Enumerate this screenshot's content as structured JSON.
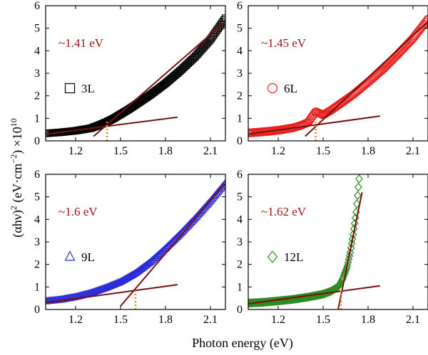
{
  "figure": {
    "ylabel_parts": [
      "(αhν)",
      "2",
      " (eV·cm",
      "−2",
      ")",
      " ×10",
      "10"
    ],
    "xlabel": "Photon energy (eV)"
  },
  "chart_data": [
    {
      "type": "scatter",
      "panel": "3L",
      "legend": "3L",
      "marker": "square",
      "color": "#000000",
      "annotation": "~1.41 eV",
      "bandgap_ev": 1.41,
      "xlim": [
        1.0,
        2.2
      ],
      "ylim": [
        0,
        6
      ],
      "xticks": [
        "1.2",
        "1.5",
        "1.8",
        "2.1"
      ],
      "yticks": [
        "0",
        "1",
        "2",
        "3",
        "4",
        "5",
        "6"
      ],
      "points": [
        [
          1.0,
          0.33
        ],
        [
          1.1,
          0.38
        ],
        [
          1.2,
          0.45
        ],
        [
          1.3,
          0.56
        ],
        [
          1.35,
          0.68
        ],
        [
          1.4,
          0.82
        ],
        [
          1.45,
          0.98
        ],
        [
          1.5,
          1.18
        ],
        [
          1.55,
          1.38
        ],
        [
          1.6,
          1.6
        ],
        [
          1.7,
          2.05
        ],
        [
          1.8,
          2.55
        ],
        [
          1.9,
          3.12
        ],
        [
          2.0,
          3.75
        ],
        [
          2.1,
          4.5
        ],
        [
          2.2,
          5.45
        ]
      ],
      "fit_line": {
        "x": [
          1.32,
          2.2
        ],
        "y": [
          0.2,
          5.3
        ]
      },
      "baseline_fit": {
        "x": [
          1.0,
          1.88
        ],
        "y": [
          0.3,
          1.05
        ]
      }
    },
    {
      "type": "scatter",
      "panel": "6L",
      "legend": "6L",
      "marker": "circle",
      "color": "#e8201c",
      "annotation": "~1.45 eV",
      "bandgap_ev": 1.45,
      "xlim": [
        1.0,
        2.2
      ],
      "ylim": [
        0,
        6
      ],
      "xticks": [
        "1.2",
        "1.5",
        "1.8",
        "2.1"
      ],
      "yticks": [
        "0",
        "1",
        "2",
        "3",
        "4",
        "5",
        "6"
      ],
      "points": [
        [
          1.0,
          0.35
        ],
        [
          1.1,
          0.4
        ],
        [
          1.2,
          0.47
        ],
        [
          1.3,
          0.58
        ],
        [
          1.35,
          0.68
        ],
        [
          1.4,
          0.82
        ],
        [
          1.45,
          1.3
        ],
        [
          1.5,
          1.15
        ],
        [
          1.55,
          1.35
        ],
        [
          1.6,
          1.58
        ],
        [
          1.7,
          2.05
        ],
        [
          1.8,
          2.6
        ],
        [
          1.9,
          3.18
        ],
        [
          2.0,
          3.85
        ],
        [
          2.1,
          4.55
        ],
        [
          2.2,
          5.4
        ]
      ],
      "fit_line": {
        "x": [
          1.38,
          2.2
        ],
        "y": [
          0.2,
          5.3
        ]
      },
      "baseline_fit": {
        "x": [
          1.0,
          1.88
        ],
        "y": [
          0.3,
          1.1
        ]
      }
    },
    {
      "type": "scatter",
      "panel": "9L",
      "legend": "9L",
      "marker": "triangle",
      "color": "#2b2bd6",
      "annotation": "~1.6 eV",
      "bandgap_ev": 1.6,
      "xlim": [
        1.0,
        2.2
      ],
      "ylim": [
        0,
        6
      ],
      "xticks": [
        "1.2",
        "1.5",
        "1.8",
        "2.1"
      ],
      "yticks": [
        "0",
        "1",
        "2",
        "3",
        "4",
        "5",
        "6"
      ],
      "points": [
        [
          1.0,
          0.36
        ],
        [
          1.1,
          0.43
        ],
        [
          1.2,
          0.55
        ],
        [
          1.3,
          0.72
        ],
        [
          1.4,
          0.95
        ],
        [
          1.5,
          1.22
        ],
        [
          1.6,
          1.6
        ],
        [
          1.7,
          2.1
        ],
        [
          1.8,
          2.7
        ],
        [
          1.9,
          3.35
        ],
        [
          2.0,
          4.05
        ],
        [
          2.1,
          4.8
        ],
        [
          2.2,
          5.6
        ]
      ],
      "fit_line": {
        "x": [
          1.5,
          2.2
        ],
        "y": [
          0.15,
          5.6
        ]
      },
      "baseline_fit": {
        "x": [
          1.0,
          1.88
        ],
        "y": [
          0.3,
          1.1
        ]
      }
    },
    {
      "type": "scatter",
      "panel": "12L",
      "legend": "12L",
      "marker": "diamond",
      "color": "#2e8b22",
      "annotation": "~1.62 eV",
      "bandgap_ev": 1.62,
      "xlim": [
        1.0,
        2.2
      ],
      "ylim": [
        0,
        6
      ],
      "xticks": [
        "1.2",
        "1.5",
        "1.8",
        "2.1"
      ],
      "yticks": [
        "0",
        "1",
        "2",
        "3",
        "4",
        "5",
        "6"
      ],
      "points": [
        [
          1.0,
          0.28
        ],
        [
          1.1,
          0.32
        ],
        [
          1.2,
          0.38
        ],
        [
          1.3,
          0.45
        ],
        [
          1.4,
          0.55
        ],
        [
          1.5,
          0.68
        ],
        [
          1.55,
          0.8
        ],
        [
          1.6,
          1.0
        ],
        [
          1.63,
          1.35
        ],
        [
          1.66,
          1.9
        ],
        [
          1.68,
          2.5
        ],
        [
          1.7,
          3.3
        ],
        [
          1.72,
          4.3
        ],
        [
          1.74,
          5.8
        ]
      ],
      "fit_line": {
        "x": [
          1.6,
          1.76
        ],
        "y": [
          0.0,
          5.2
        ]
      },
      "baseline_fit": {
        "x": [
          1.0,
          1.88
        ],
        "y": [
          0.25,
          1.05
        ]
      }
    }
  ]
}
